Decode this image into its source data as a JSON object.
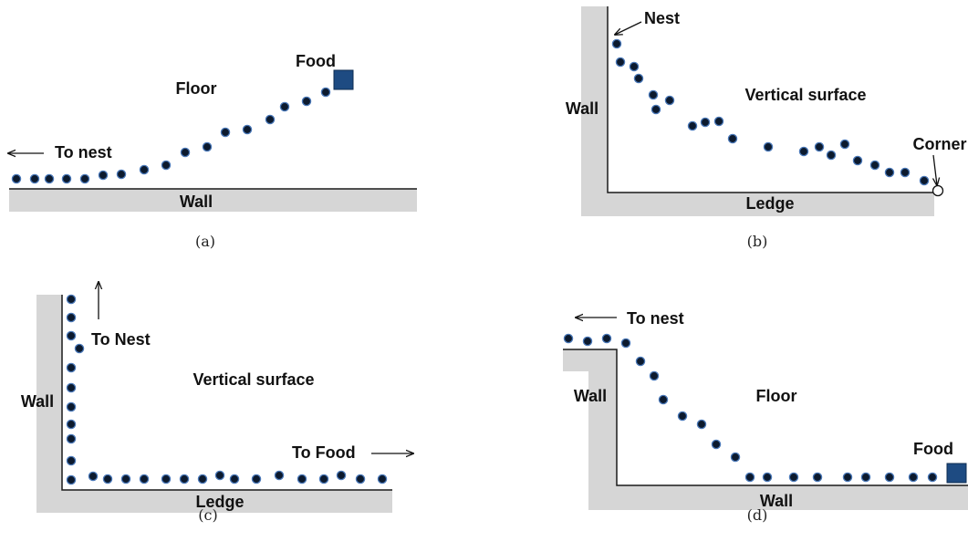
{
  "colors": {
    "wall": "#d6d6d6",
    "line": "#1a1a1a",
    "dot": "#0c1a2e",
    "dot_edge": "#4a78b8",
    "food": "#1e4b82"
  },
  "panels": [
    {
      "caption": "(a)",
      "labels": {
        "surface": "Floor",
        "food": "Food",
        "to_nest": "To nest",
        "wall": "Wall"
      },
      "ant_count": 21
    },
    {
      "caption": "(b)",
      "labels": {
        "nest": "Nest",
        "surface": "Vertical surface",
        "wall": "Wall",
        "corner": "Corner",
        "ledge": "Ledge"
      },
      "ant_count": 24
    },
    {
      "caption": "(c)",
      "labels": {
        "to_nest": "To Nest",
        "surface": "Vertical surface",
        "wall": "Wall",
        "to_food": "To Food",
        "ledge": "Ledge"
      },
      "ant_count": 32
    },
    {
      "caption": "(d)",
      "labels": {
        "to_nest": "To nest",
        "wall_left": "Wall",
        "surface": "Floor",
        "food": "Food",
        "wall_bottom": "Wall"
      },
      "ant_count": 22
    }
  ]
}
